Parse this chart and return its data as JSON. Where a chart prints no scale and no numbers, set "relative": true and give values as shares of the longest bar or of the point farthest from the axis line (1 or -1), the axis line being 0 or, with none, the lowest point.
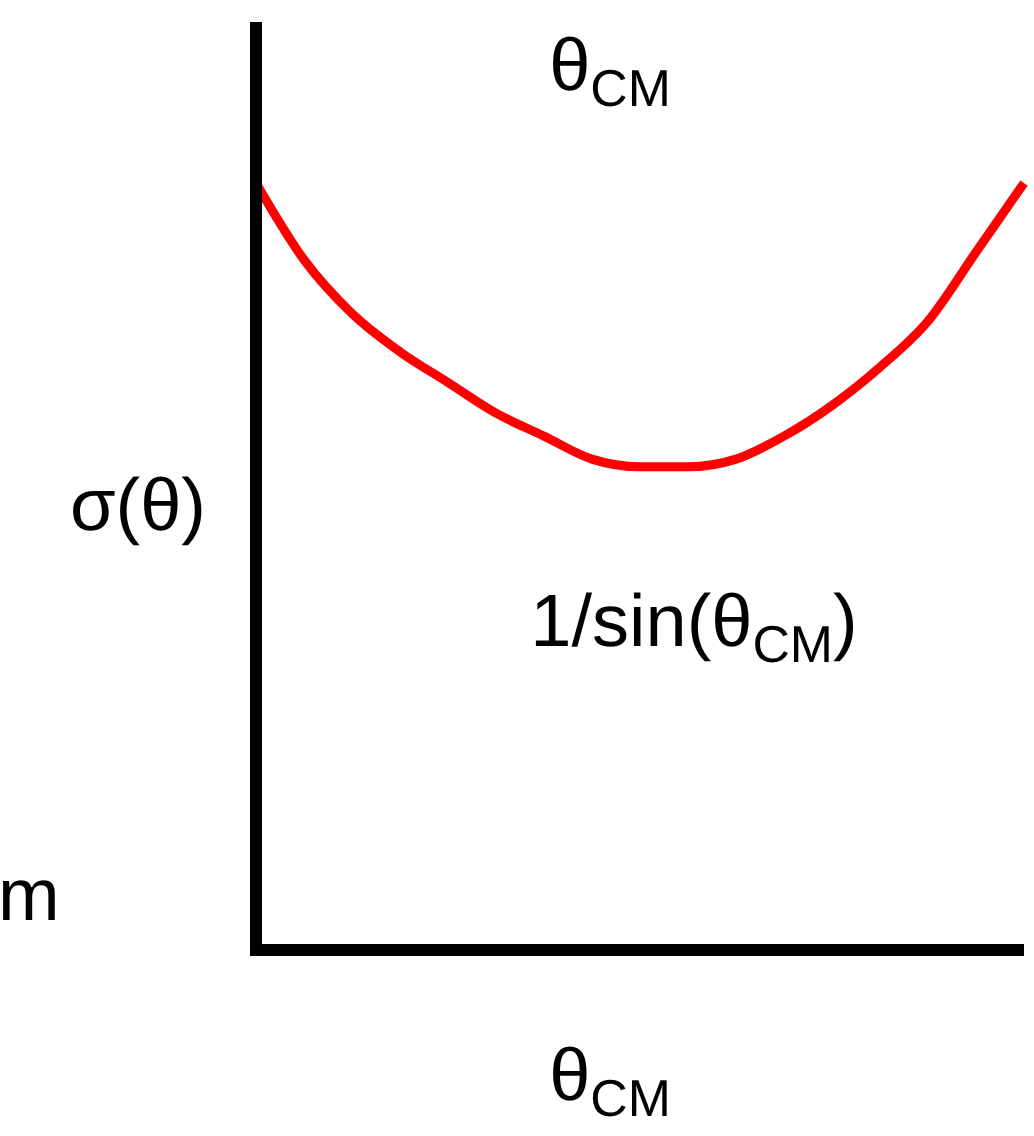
{
  "chart_data": {
    "type": "line",
    "title": "θ$_{CM}$",
    "xlabel": "θ$_{CM}$",
    "ylabel": "σ(θ)",
    "annotations": [
      "1/sin(θ$_{CM}$)",
      "m"
    ],
    "categories": [
      null,
      null,
      null,
      null,
      null,
      null,
      null,
      null,
      null,
      null,
      null,
      null,
      null,
      null,
      null,
      null,
      null
    ],
    "relative": true,
    "series": [
      {
        "color": "#ff0000",
        "values": [
          1.0,
          0.9,
          0.83,
          0.78,
          0.74,
          0.7,
          0.67,
          0.64,
          0.63,
          0.63,
          0.64,
          0.67,
          0.71,
          0.76,
          0.82,
          0.91,
          1.0
        ]
      }
    ]
  }
}
